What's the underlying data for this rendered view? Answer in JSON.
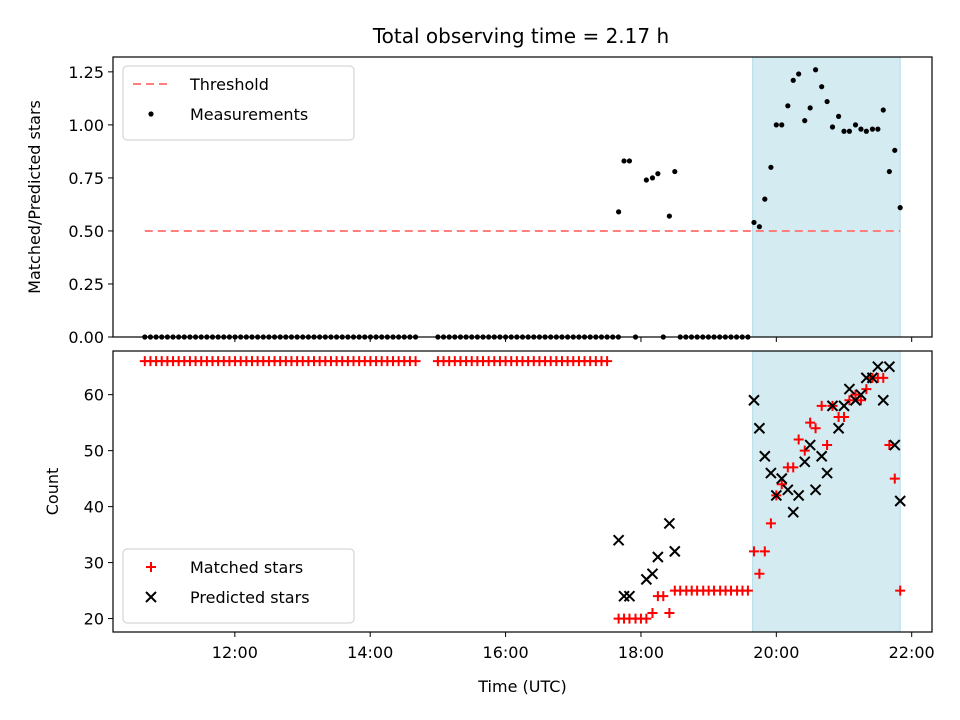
{
  "title": "Total observing time = 2.17 h",
  "chart_data": [
    {
      "type": "scatter",
      "ylabel": "Matched/Predicted stars",
      "ylim": [
        0,
        1.32
      ],
      "yticks": [
        "0.00",
        "0.25",
        "0.50",
        "0.75",
        "1.00",
        "1.25"
      ],
      "ytick_values": [
        0,
        0.25,
        0.5,
        0.75,
        1.0,
        1.25
      ],
      "xlim": [
        10.2,
        22.3
      ],
      "shaded_region": [
        19.65,
        21.83
      ],
      "shade_color": "#d4ebf1",
      "legend_position": "top-left",
      "threshold": {
        "name": "Threshold",
        "value": 0.5,
        "x_range": [
          10.67,
          21.83
        ],
        "color": "#ff7f7f"
      },
      "series": [
        {
          "name": "Measurements",
          "color": "#000000",
          "x": [
            17.67,
            17.75,
            17.83,
            18.08,
            18.17,
            18.25,
            18.42,
            18.5,
            19.67,
            19.75,
            19.83,
            19.92,
            20.0,
            20.08,
            20.17,
            20.25,
            20.33,
            20.42,
            20.5,
            20.58,
            20.67,
            20.75,
            20.83,
            20.92,
            21.0,
            21.08,
            21.17,
            21.25,
            21.33,
            21.42,
            21.5,
            21.58,
            21.67,
            21.75,
            21.83
          ],
          "y": [
            0.59,
            0.83,
            0.83,
            0.74,
            0.75,
            0.77,
            0.57,
            0.78,
            0.54,
            0.52,
            0.65,
            0.8,
            1.0,
            1.0,
            1.09,
            1.21,
            1.24,
            1.02,
            1.08,
            1.26,
            1.18,
            1.11,
            0.99,
            1.04,
            0.97,
            0.97,
            1.0,
            0.98,
            0.97,
            0.98,
            0.98,
            1.07,
            0.78,
            0.88,
            0.61
          ],
          "zero_x_ranges": [
            [
              10.67,
              14.67
            ],
            [
              15.0,
              17.67
            ],
            [
              17.92,
              18.0
            ],
            [
              18.33,
              18.33
            ],
            [
              18.58,
              19.58
            ]
          ]
        }
      ]
    },
    {
      "type": "scatter",
      "ylabel": "Count",
      "xlabel": "Time (UTC)",
      "ylim": [
        17.6,
        67.8
      ],
      "yticks": [
        "20",
        "30",
        "40",
        "50",
        "60"
      ],
      "ytick_values": [
        20,
        30,
        40,
        50,
        60
      ],
      "xlim": [
        10.2,
        22.3
      ],
      "xticks": [
        "12:00",
        "14:00",
        "16:00",
        "18:00",
        "20:00",
        "22:00"
      ],
      "xtick_values": [
        12,
        14,
        16,
        18,
        20,
        22
      ],
      "shaded_region": [
        19.65,
        21.83
      ],
      "shade_color": "#d4ebf1",
      "legend_position": "bottom-left",
      "series": [
        {
          "name": "Matched stars",
          "color": "#ff0000",
          "marker": "plus",
          "x": [
            17.67,
            17.75,
            17.83,
            17.92,
            18.0,
            18.08,
            18.17,
            18.25,
            18.33,
            18.42,
            18.5,
            18.58,
            18.67,
            18.75,
            18.83,
            18.92,
            19.0,
            19.08,
            19.17,
            19.25,
            19.33,
            19.42,
            19.5,
            19.58,
            19.67,
            19.75,
            19.83,
            19.92,
            20.0,
            20.08,
            20.17,
            20.25,
            20.33,
            20.42,
            20.5,
            20.58,
            20.67,
            20.75,
            20.83,
            20.92,
            21.0,
            21.08,
            21.17,
            21.25,
            21.33,
            21.42,
            21.5,
            21.58,
            21.67,
            21.75,
            21.83
          ],
          "y": [
            20,
            20,
            20,
            20,
            20,
            20,
            21,
            24,
            24,
            21,
            25,
            25,
            25,
            25,
            25,
            25,
            25,
            25,
            25,
            25,
            25,
            25,
            25,
            25,
            32,
            28,
            32,
            37,
            42,
            44,
            47,
            47,
            52,
            50,
            55,
            54,
            58,
            51,
            58,
            56,
            56,
            59,
            60,
            59,
            61,
            63,
            63,
            63,
            51,
            45,
            25
          ],
          "flat_segments": [
            {
              "x_ranges": [
                [
                  10.67,
                  14.67
                ],
                [
                  15.0,
                  17.58
                ]
              ],
              "value": 66
            }
          ]
        },
        {
          "name": "Predicted stars",
          "color": "#000000",
          "marker": "x",
          "x": [
            17.67,
            17.75,
            17.83,
            18.08,
            18.17,
            18.25,
            18.42,
            18.5,
            19.67,
            19.75,
            19.83,
            19.92,
            20.0,
            20.08,
            20.17,
            20.25,
            20.33,
            20.42,
            20.5,
            20.58,
            20.67,
            20.75,
            20.83,
            20.92,
            21.0,
            21.08,
            21.17,
            21.25,
            21.33,
            21.42,
            21.5,
            21.58,
            21.67,
            21.75,
            21.83
          ],
          "y": [
            34,
            24,
            24,
            27,
            28,
            31,
            37,
            32,
            59,
            54,
            49,
            46,
            42,
            45,
            43,
            39,
            42,
            48,
            51,
            43,
            49,
            46,
            58,
            54,
            58,
            61,
            59,
            60,
            63,
            63,
            65,
            59,
            65,
            51,
            41
          ]
        }
      ]
    }
  ]
}
